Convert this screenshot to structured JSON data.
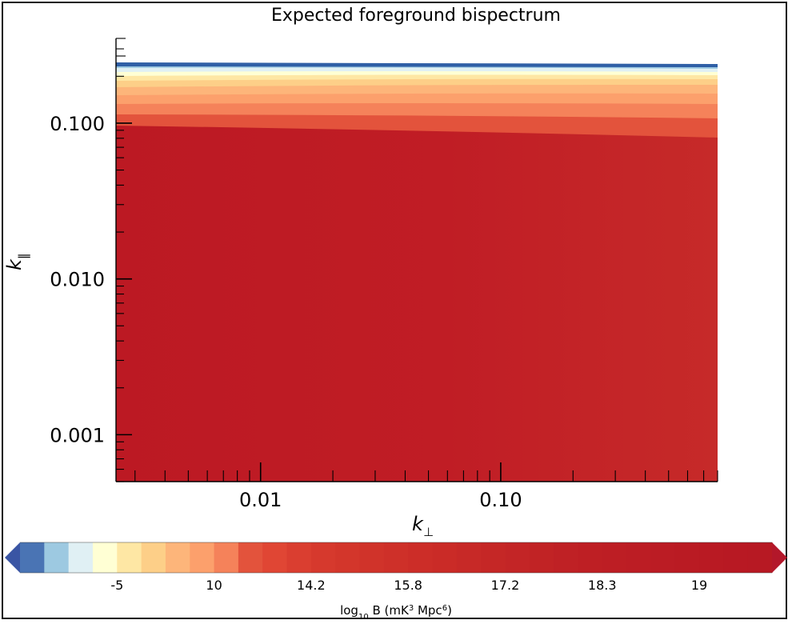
{
  "chart_data": {
    "type": "heatmap",
    "title": "Expected foreground bispectrum",
    "xlabel": "k",
    "xlabel_sub": "⊥",
    "ylabel": "k",
    "ylabel_sub": "‖",
    "x_scale": "log",
    "y_scale": "log",
    "xlim": [
      0.0025,
      0.8
    ],
    "ylim": [
      0.0005,
      0.35
    ],
    "x_ticks": [
      {
        "value": 0.01,
        "label": "0.01"
      },
      {
        "value": 0.1,
        "label": "0.10"
      }
    ],
    "y_ticks": [
      {
        "value": 0.001,
        "label": "0.001"
      },
      {
        "value": 0.01,
        "label": "0.010"
      },
      {
        "value": 0.1,
        "label": "0.100"
      }
    ],
    "grid": false,
    "colorbar": {
      "label_parts": [
        "log",
        "10",
        " B (mK",
        "3",
        " Mpc",
        "6",
        ")"
      ],
      "extend": "both",
      "ticks": [
        {
          "bin": 4,
          "label": "-5"
        },
        {
          "bin": 8,
          "label": "10"
        },
        {
          "bin": 12,
          "label": "14.2"
        },
        {
          "bin": 16,
          "label": "15.8"
        },
        {
          "bin": 20,
          "label": "17.2"
        },
        {
          "bin": 24,
          "label": "18.3"
        },
        {
          "bin": 28,
          "label": "19"
        }
      ],
      "colors": [
        "#4a74b4",
        "#9dc9e1",
        "#e0f0f4",
        "#ffffd4",
        "#fee7a4",
        "#fdcf88",
        "#fdb57a",
        "#fca06c",
        "#f5825a",
        "#e3533c",
        "#e04634",
        "#da3e30",
        "#d6392d",
        "#d3362b",
        "#d0332a",
        "#ce3029",
        "#cc2d28",
        "#ca2b27",
        "#c72927",
        "#c52726",
        "#c32526",
        "#c12325",
        "#bf2125",
        "#be1f24",
        "#bd1e24",
        "#bc1d24",
        "#bb1c24",
        "#ba1b23",
        "#b91a23",
        "#b81923",
        "#b71923"
      ]
    }
  }
}
